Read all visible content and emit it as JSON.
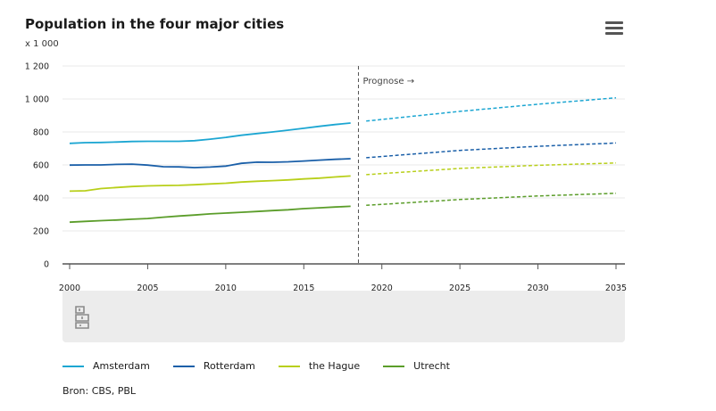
{
  "title": "Population in the four major cities",
  "unit_label": "x 1 000",
  "source": "Bron: CBS, PBL",
  "menu_icon": "hamburger-menu-icon",
  "logo_icon": "cbs-logo-icon",
  "chart_data": {
    "type": "line",
    "title": "Population in the four major cities",
    "ylabel": "x 1 000",
    "xlabel": "",
    "ylim": [
      0,
      1200
    ],
    "xlim": [
      2000,
      2035
    ],
    "y_ticks": [
      "0",
      "200",
      "400",
      "600",
      "800",
      "1 000",
      "1 200"
    ],
    "x_ticks": [
      "2000",
      "2005",
      "2010",
      "2015",
      "2020",
      "2025",
      "2030",
      "2035"
    ],
    "forecast_label": "Prognose →",
    "forecast_boundary": 2018.5,
    "grid": true,
    "legend_position": "bottom",
    "series": [
      {
        "name": "Amsterdam",
        "color": "#1ca6d2",
        "values": [
          [
            2000,
            731
          ],
          [
            2001,
            735
          ],
          [
            2002,
            736
          ],
          [
            2003,
            739
          ],
          [
            2004,
            742
          ],
          [
            2005,
            743
          ],
          [
            2006,
            743
          ],
          [
            2007,
            743
          ],
          [
            2008,
            747
          ],
          [
            2009,
            756
          ],
          [
            2010,
            767
          ],
          [
            2011,
            780
          ],
          [
            2012,
            790
          ],
          [
            2013,
            800
          ],
          [
            2014,
            811
          ],
          [
            2015,
            822
          ],
          [
            2016,
            834
          ],
          [
            2017,
            845
          ],
          [
            2018,
            854
          ]
        ],
        "forecast": [
          [
            2019,
            866
          ],
          [
            2025,
            925
          ],
          [
            2030,
            968
          ],
          [
            2035,
            1007
          ]
        ]
      },
      {
        "name": "Rotterdam",
        "color": "#1a5fa8",
        "values": [
          [
            2000,
            599
          ],
          [
            2001,
            600
          ],
          [
            2002,
            600
          ],
          [
            2003,
            603
          ],
          [
            2004,
            605
          ],
          [
            2005,
            599
          ],
          [
            2006,
            589
          ],
          [
            2007,
            588
          ],
          [
            2008,
            584
          ],
          [
            2009,
            587
          ],
          [
            2010,
            593
          ],
          [
            2011,
            610
          ],
          [
            2012,
            617
          ],
          [
            2013,
            616
          ],
          [
            2014,
            619
          ],
          [
            2015,
            624
          ],
          [
            2016,
            629
          ],
          [
            2017,
            634
          ],
          [
            2018,
            638
          ]
        ],
        "forecast": [
          [
            2019,
            644
          ],
          [
            2025,
            688
          ],
          [
            2030,
            713
          ],
          [
            2035,
            733
          ]
        ]
      },
      {
        "name": "the Hague",
        "color": "#b8cf1a",
        "values": [
          [
            2000,
            441
          ],
          [
            2001,
            443
          ],
          [
            2002,
            457
          ],
          [
            2003,
            463
          ],
          [
            2004,
            469
          ],
          [
            2005,
            473
          ],
          [
            2006,
            475
          ],
          [
            2007,
            476
          ],
          [
            2008,
            480
          ],
          [
            2009,
            485
          ],
          [
            2010,
            489
          ],
          [
            2011,
            496
          ],
          [
            2012,
            501
          ],
          [
            2013,
            505
          ],
          [
            2014,
            509
          ],
          [
            2015,
            515
          ],
          [
            2016,
            520
          ],
          [
            2017,
            527
          ],
          [
            2018,
            533
          ]
        ],
        "forecast": [
          [
            2019,
            541
          ],
          [
            2025,
            579
          ],
          [
            2030,
            598
          ],
          [
            2035,
            612
          ]
        ]
      },
      {
        "name": "Utrecht",
        "color": "#5b9d2a",
        "values": [
          [
            2000,
            253
          ],
          [
            2001,
            258
          ],
          [
            2002,
            262
          ],
          [
            2003,
            266
          ],
          [
            2004,
            271
          ],
          [
            2005,
            275
          ],
          [
            2006,
            283
          ],
          [
            2007,
            290
          ],
          [
            2008,
            296
          ],
          [
            2009,
            303
          ],
          [
            2010,
            308
          ],
          [
            2011,
            313
          ],
          [
            2012,
            318
          ],
          [
            2013,
            323
          ],
          [
            2014,
            328
          ],
          [
            2015,
            335
          ],
          [
            2016,
            340
          ],
          [
            2017,
            345
          ],
          [
            2018,
            349
          ]
        ],
        "forecast": [
          [
            2019,
            355
          ],
          [
            2025,
            390
          ],
          [
            2030,
            412
          ],
          [
            2035,
            428
          ]
        ]
      }
    ]
  }
}
